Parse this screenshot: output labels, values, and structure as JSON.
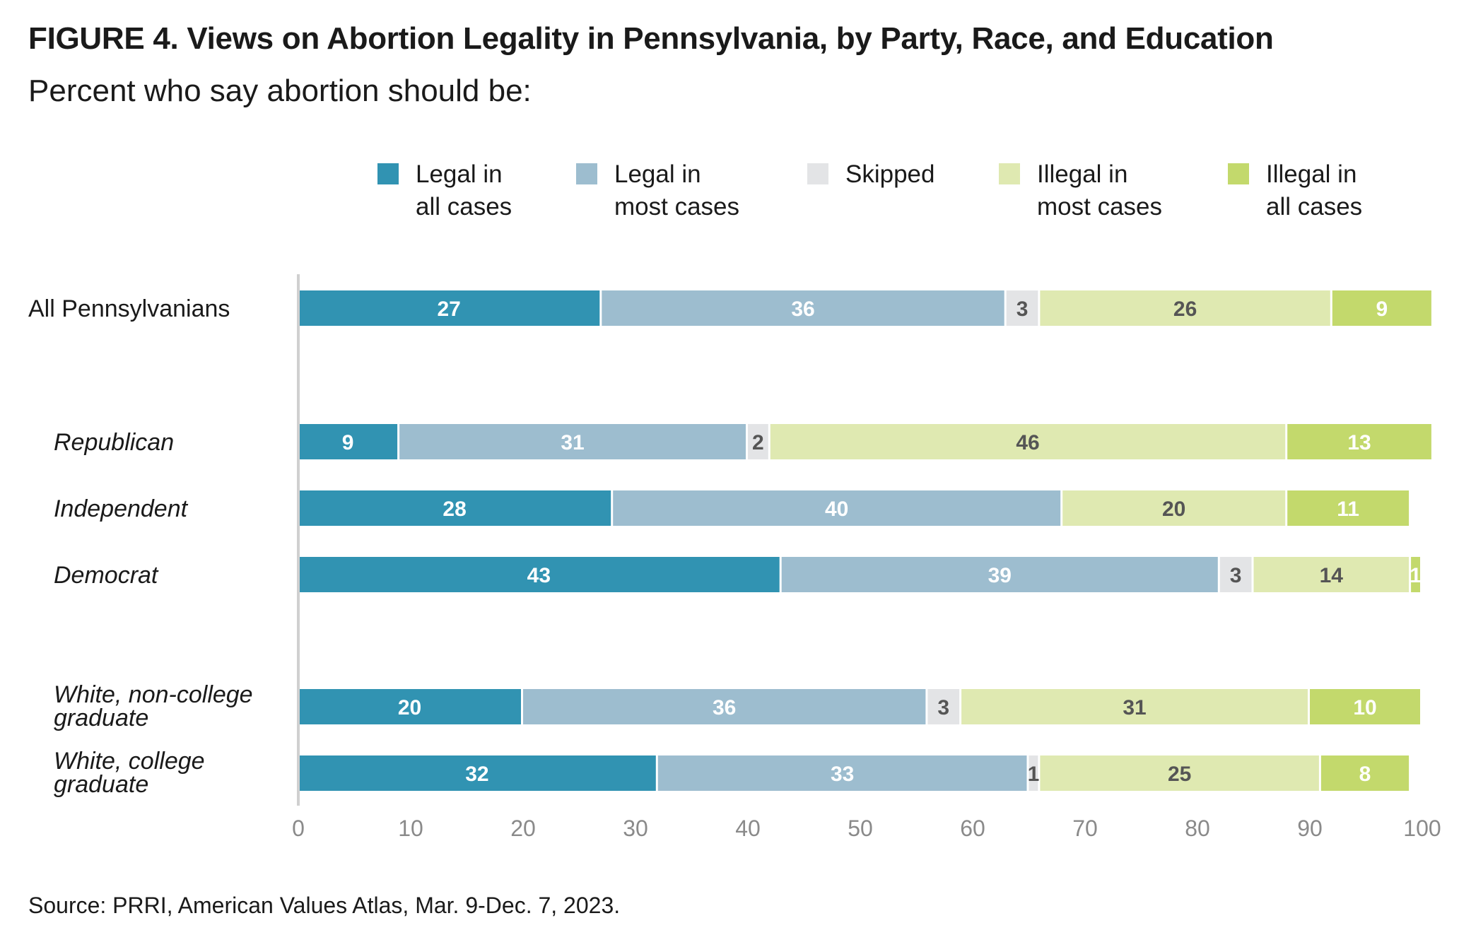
{
  "title": "FIGURE 4. Views on Abortion Legality in Pennsylvania, by Party, Race, and Education",
  "subtitle": "Percent who say abortion should be:",
  "source": "Source: PRRI, American Values Atlas, Mar. 9-Dec. 7, 2023.",
  "chart_data": {
    "type": "bar",
    "orientation": "horizontal",
    "stacked": true,
    "xlim": [
      0,
      100
    ],
    "x_ticks": [
      0,
      10,
      20,
      30,
      40,
      50,
      60,
      70,
      80,
      90,
      100
    ],
    "legend_position": "top",
    "categories": [
      {
        "label": [
          "All Pennsylvanians"
        ],
        "italic": false
      },
      {
        "label": [
          "Republican"
        ],
        "italic": true
      },
      {
        "label": [
          "Independent"
        ],
        "italic": true
      },
      {
        "label": [
          "Democrat"
        ],
        "italic": true
      },
      {
        "label": [
          "White, non-college",
          "graduate"
        ],
        "italic": true
      },
      {
        "label": [
          "White, college",
          "graduate"
        ],
        "italic": true
      }
    ],
    "series": [
      {
        "name": [
          "Legal in",
          "all cases"
        ],
        "color": "#3193b2",
        "label_color": "#ffffff",
        "values": [
          27,
          9,
          28,
          43,
          20,
          32
        ]
      },
      {
        "name": [
          "Legal in",
          "most cases"
        ],
        "color": "#9dbdcf",
        "label_color": "#ffffff",
        "values": [
          36,
          31,
          40,
          39,
          36,
          33
        ]
      },
      {
        "name": [
          "Skipped"
        ],
        "color": "#e3e4e6",
        "label_color": "#555555",
        "values": [
          3,
          2,
          0,
          3,
          3,
          1
        ]
      },
      {
        "name": [
          "Illegal in",
          "most cases"
        ],
        "color": "#dfe9b1",
        "label_color": "#555555",
        "values": [
          26,
          46,
          20,
          14,
          31,
          25
        ]
      },
      {
        "name": [
          "Illegal in",
          "all cases"
        ],
        "color": "#c3d96c",
        "label_color": "#ffffff",
        "values": [
          9,
          13,
          11,
          1,
          10,
          8
        ]
      }
    ]
  }
}
